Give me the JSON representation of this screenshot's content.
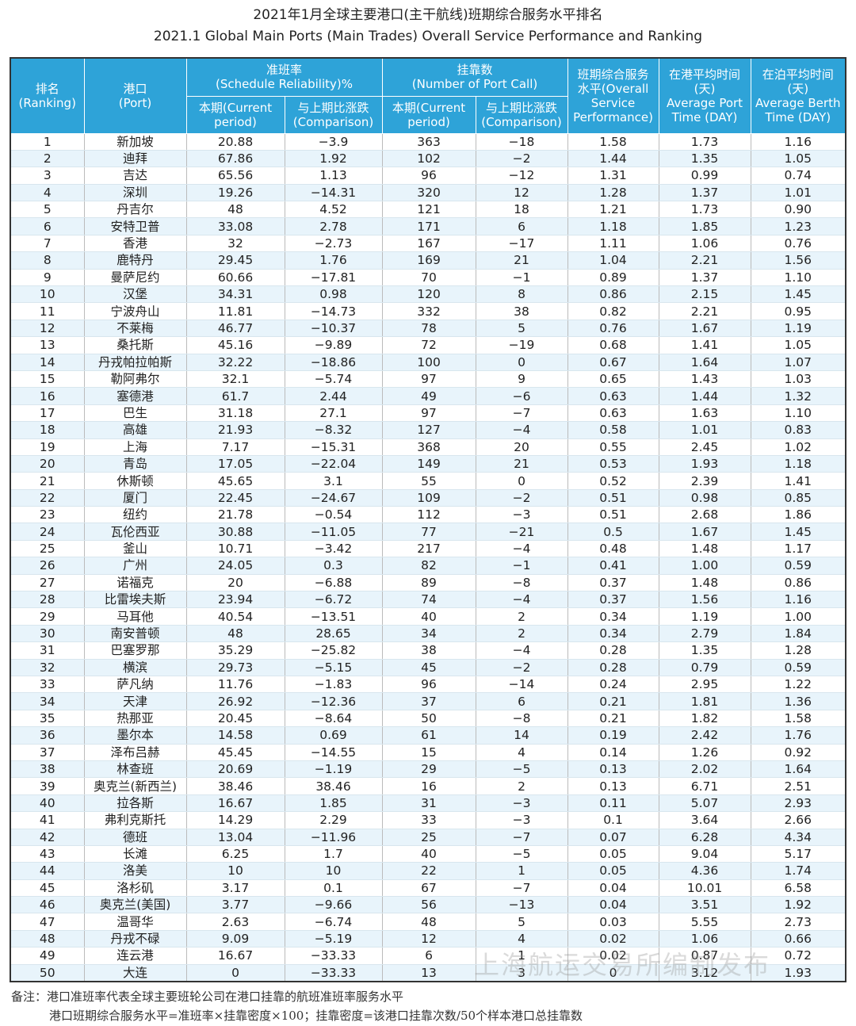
{
  "header": {
    "title": "2021年1月全球主要港口(主干航线)班期综合服务水平排名",
    "subtitle": "2021.1 Global Main Ports (Main Trades) Overall Service Performance and Ranking"
  },
  "table": {
    "head_top": [
      "排名\n(Ranking)",
      "港口\n(Port)",
      "准班率\n(Schedule Reliability)%",
      "挂靠数\n(Number of Port Call)",
      "班期综合服务\n水平(Overall\nService\nPerformance)",
      "在港平均时间\n(天)\nAverage Port\nTime (DAY)",
      "在泊平均时间\n(天)\nAverage Berth\nTime (DAY)"
    ],
    "head_sub": [
      "本期(Current\nperiod)",
      "与上期比涨跌\n(Comparison)",
      "本期(Current\nperiod)",
      "与上期比涨跌\n(Comparison)"
    ],
    "rows": [
      [
        "1",
        "新加坡",
        "20.88",
        "−3.9",
        "363",
        "−18",
        "1.58",
        "1.73",
        "1.16"
      ],
      [
        "2",
        "迪拜",
        "67.86",
        "1.92",
        "102",
        "−2",
        "1.44",
        "1.35",
        "1.05"
      ],
      [
        "3",
        "吉达",
        "65.56",
        "1.13",
        "96",
        "−12",
        "1.31",
        "0.99",
        "0.74"
      ],
      [
        "4",
        "深圳",
        "19.26",
        "−14.31",
        "320",
        "12",
        "1.28",
        "1.37",
        "1.01"
      ],
      [
        "5",
        "丹吉尔",
        "48",
        "4.52",
        "121",
        "18",
        "1.21",
        "1.73",
        "0.90"
      ],
      [
        "6",
        "安特卫普",
        "33.08",
        "2.78",
        "171",
        "6",
        "1.18",
        "1.85",
        "1.23"
      ],
      [
        "7",
        "香港",
        "32",
        "−2.73",
        "167",
        "−17",
        "1.11",
        "1.06",
        "0.76"
      ],
      [
        "8",
        "鹿特丹",
        "29.45",
        "1.76",
        "169",
        "21",
        "1.04",
        "2.21",
        "1.56"
      ],
      [
        "9",
        "曼萨尼约",
        "60.66",
        "−17.81",
        "70",
        "−1",
        "0.89",
        "1.37",
        "1.10"
      ],
      [
        "10",
        "汉堡",
        "34.31",
        "0.98",
        "120",
        "8",
        "0.86",
        "2.15",
        "1.45"
      ],
      [
        "11",
        "宁波舟山",
        "11.81",
        "−14.73",
        "332",
        "38",
        "0.82",
        "2.21",
        "0.95"
      ],
      [
        "12",
        "不莱梅",
        "46.77",
        "−10.37",
        "78",
        "5",
        "0.76",
        "1.67",
        "1.19"
      ],
      [
        "13",
        "桑托斯",
        "45.16",
        "−9.89",
        "72",
        "−19",
        "0.68",
        "1.41",
        "1.05"
      ],
      [
        "14",
        "丹戎帕拉帕斯",
        "32.22",
        "−18.86",
        "100",
        "0",
        "0.67",
        "1.64",
        "1.07"
      ],
      [
        "15",
        "勒阿弗尔",
        "32.1",
        "−5.74",
        "97",
        "9",
        "0.65",
        "1.43",
        "1.03"
      ],
      [
        "16",
        "塞德港",
        "61.7",
        "2.44",
        "49",
        "−6",
        "0.63",
        "1.44",
        "1.32"
      ],
      [
        "17",
        "巴生",
        "31.18",
        "27.1",
        "97",
        "−7",
        "0.63",
        "1.63",
        "1.10"
      ],
      [
        "18",
        "高雄",
        "21.93",
        "−8.32",
        "127",
        "−4",
        "0.58",
        "1.01",
        "0.83"
      ],
      [
        "19",
        "上海",
        "7.17",
        "−15.31",
        "368",
        "20",
        "0.55",
        "2.45",
        "1.02"
      ],
      [
        "20",
        "青岛",
        "17.05",
        "−22.04",
        "149",
        "21",
        "0.53",
        "1.93",
        "1.18"
      ],
      [
        "21",
        "休斯顿",
        "45.65",
        "3.1",
        "55",
        "0",
        "0.52",
        "2.39",
        "1.41"
      ],
      [
        "22",
        "厦门",
        "22.45",
        "−24.67",
        "109",
        "−2",
        "0.51",
        "0.98",
        "0.85"
      ],
      [
        "23",
        "纽约",
        "21.78",
        "−0.54",
        "112",
        "−3",
        "0.51",
        "2.68",
        "1.86"
      ],
      [
        "24",
        "瓦伦西亚",
        "30.88",
        "−11.05",
        "77",
        "−21",
        "0.5",
        "1.67",
        "1.45"
      ],
      [
        "25",
        "釜山",
        "10.71",
        "−3.42",
        "217",
        "−4",
        "0.48",
        "1.48",
        "1.17"
      ],
      [
        "26",
        "广州",
        "24.05",
        "0.3",
        "82",
        "−1",
        "0.41",
        "1.00",
        "0.59"
      ],
      [
        "27",
        "诺福克",
        "20",
        "−6.88",
        "89",
        "−8",
        "0.37",
        "1.48",
        "0.86"
      ],
      [
        "28",
        "比雷埃夫斯",
        "23.94",
        "−6.72",
        "74",
        "−4",
        "0.37",
        "1.56",
        "1.16"
      ],
      [
        "29",
        "马耳他",
        "40.54",
        "−13.51",
        "40",
        "2",
        "0.34",
        "1.19",
        "1.00"
      ],
      [
        "30",
        "南安普顿",
        "48",
        "28.65",
        "34",
        "2",
        "0.34",
        "2.79",
        "1.84"
      ],
      [
        "31",
        "巴塞罗那",
        "35.29",
        "−25.82",
        "38",
        "−4",
        "0.28",
        "1.35",
        "1.28"
      ],
      [
        "32",
        "横滨",
        "29.73",
        "−5.15",
        "45",
        "−2",
        "0.28",
        "0.79",
        "0.59"
      ],
      [
        "33",
        "萨凡纳",
        "11.76",
        "−1.83",
        "96",
        "−14",
        "0.24",
        "2.95",
        "1.22"
      ],
      [
        "34",
        "天津",
        "26.92",
        "−12.36",
        "37",
        "6",
        "0.21",
        "1.81",
        "1.36"
      ],
      [
        "35",
        "热那亚",
        "20.45",
        "−8.64",
        "50",
        "−8",
        "0.21",
        "1.82",
        "1.58"
      ],
      [
        "36",
        "墨尔本",
        "14.58",
        "0.69",
        "61",
        "14",
        "0.19",
        "2.42",
        "1.76"
      ],
      [
        "37",
        "泽布吕赫",
        "45.45",
        "−14.55",
        "15",
        "4",
        "0.14",
        "1.26",
        "0.92"
      ],
      [
        "38",
        "林查班",
        "20.69",
        "−1.19",
        "29",
        "−5",
        "0.13",
        "2.02",
        "1.64"
      ],
      [
        "39",
        "奥克兰(新西兰)",
        "38.46",
        "38.46",
        "16",
        "2",
        "0.13",
        "6.71",
        "2.51"
      ],
      [
        "40",
        "拉各斯",
        "16.67",
        "1.85",
        "31",
        "−3",
        "0.11",
        "5.07",
        "2.93"
      ],
      [
        "41",
        "弗利克斯托",
        "14.29",
        "2.29",
        "33",
        "−3",
        "0.1",
        "3.64",
        "2.66"
      ],
      [
        "42",
        "德班",
        "13.04",
        "−11.96",
        "25",
        "−7",
        "0.07",
        "6.28",
        "4.34"
      ],
      [
        "43",
        "长滩",
        "6.25",
        "1.7",
        "40",
        "−5",
        "0.05",
        "9.04",
        "5.17"
      ],
      [
        "44",
        "洛美",
        "10",
        "10",
        "22",
        "1",
        "0.05",
        "4.36",
        "1.74"
      ],
      [
        "45",
        "洛杉矶",
        "3.17",
        "0.1",
        "67",
        "−7",
        "0.04",
        "10.01",
        "6.58"
      ],
      [
        "46",
        "奥克兰(美国)",
        "3.77",
        "−9.66",
        "56",
        "−13",
        "0.04",
        "3.51",
        "1.92"
      ],
      [
        "47",
        "温哥华",
        "2.63",
        "−6.74",
        "48",
        "5",
        "0.03",
        "5.55",
        "2.73"
      ],
      [
        "48",
        "丹戎不碌",
        "9.09",
        "−5.19",
        "12",
        "4",
        "0.02",
        "1.06",
        "0.66"
      ],
      [
        "49",
        "连云港",
        "16.67",
        "−33.33",
        "6",
        "1",
        "0.02",
        "0.87",
        "0.72"
      ],
      [
        "50",
        "大连",
        "0",
        "−33.33",
        "13",
        "3",
        "0",
        "3.12",
        "1.93"
      ]
    ]
  },
  "watermark": "上海航运交易所编制发布",
  "notes": [
    "备注：港口准班率代表全球主要班轮公司在港口挂靠的航班准班率服务水平",
    "港口班期综合服务水平=准班率×挂靠密度×100；挂靠密度=该港口挂靠次数/50个样本港口总挂靠数"
  ]
}
